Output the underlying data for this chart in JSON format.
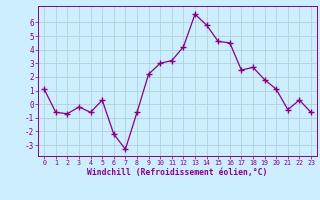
{
  "x": [
    0,
    1,
    2,
    3,
    4,
    5,
    6,
    7,
    8,
    9,
    10,
    11,
    12,
    13,
    14,
    15,
    16,
    17,
    18,
    19,
    20,
    21,
    22,
    23
  ],
  "y": [
    1.1,
    -0.6,
    -0.7,
    -0.2,
    -0.6,
    0.3,
    -2.2,
    -3.3,
    -0.6,
    2.2,
    3.0,
    3.2,
    4.2,
    6.6,
    5.8,
    4.6,
    4.5,
    2.5,
    2.7,
    1.8,
    1.1,
    -0.4,
    0.3,
    -0.6
  ],
  "xlim": [
    -0.5,
    23.5
  ],
  "ylim": [
    -3.8,
    7.2
  ],
  "yticks": [
    -3,
    -2,
    -1,
    0,
    1,
    2,
    3,
    4,
    5,
    6
  ],
  "xticks": [
    0,
    1,
    2,
    3,
    4,
    5,
    6,
    7,
    8,
    9,
    10,
    11,
    12,
    13,
    14,
    15,
    16,
    17,
    18,
    19,
    20,
    21,
    22,
    23
  ],
  "line_color": "#880088",
  "marker": "+",
  "marker_size": 4,
  "xlabel": "Windchill (Refroidissement éolien,°C)",
  "bg_color": "#cceeff",
  "grid_color": "#aacccc",
  "axis_color": "#880088",
  "tick_color": "#880088",
  "label_color": "#880088"
}
